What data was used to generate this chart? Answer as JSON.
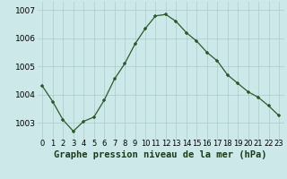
{
  "x": [
    0,
    1,
    2,
    3,
    4,
    5,
    6,
    7,
    8,
    9,
    10,
    11,
    12,
    13,
    14,
    15,
    16,
    17,
    18,
    19,
    20,
    21,
    22,
    23
  ],
  "y": [
    1004.3,
    1003.75,
    1003.1,
    1002.7,
    1003.05,
    1003.2,
    1003.8,
    1004.55,
    1005.1,
    1005.8,
    1006.35,
    1006.8,
    1006.85,
    1006.6,
    1006.2,
    1005.9,
    1005.5,
    1005.2,
    1004.7,
    1004.4,
    1004.1,
    1003.9,
    1003.6,
    1003.25
  ],
  "line_color": "#2d5a2d",
  "marker_color": "#2d5a2d",
  "bg_color": "#cce8e8",
  "grid_color": "#aacaca",
  "title": "Graphe pression niveau de la mer (hPa)",
  "ylim_min": 1002.4,
  "ylim_max": 1007.3,
  "yticks": [
    1003,
    1004,
    1005,
    1006,
    1007
  ],
  "tick_fontsize": 6.5,
  "title_fontsize": 7.5
}
